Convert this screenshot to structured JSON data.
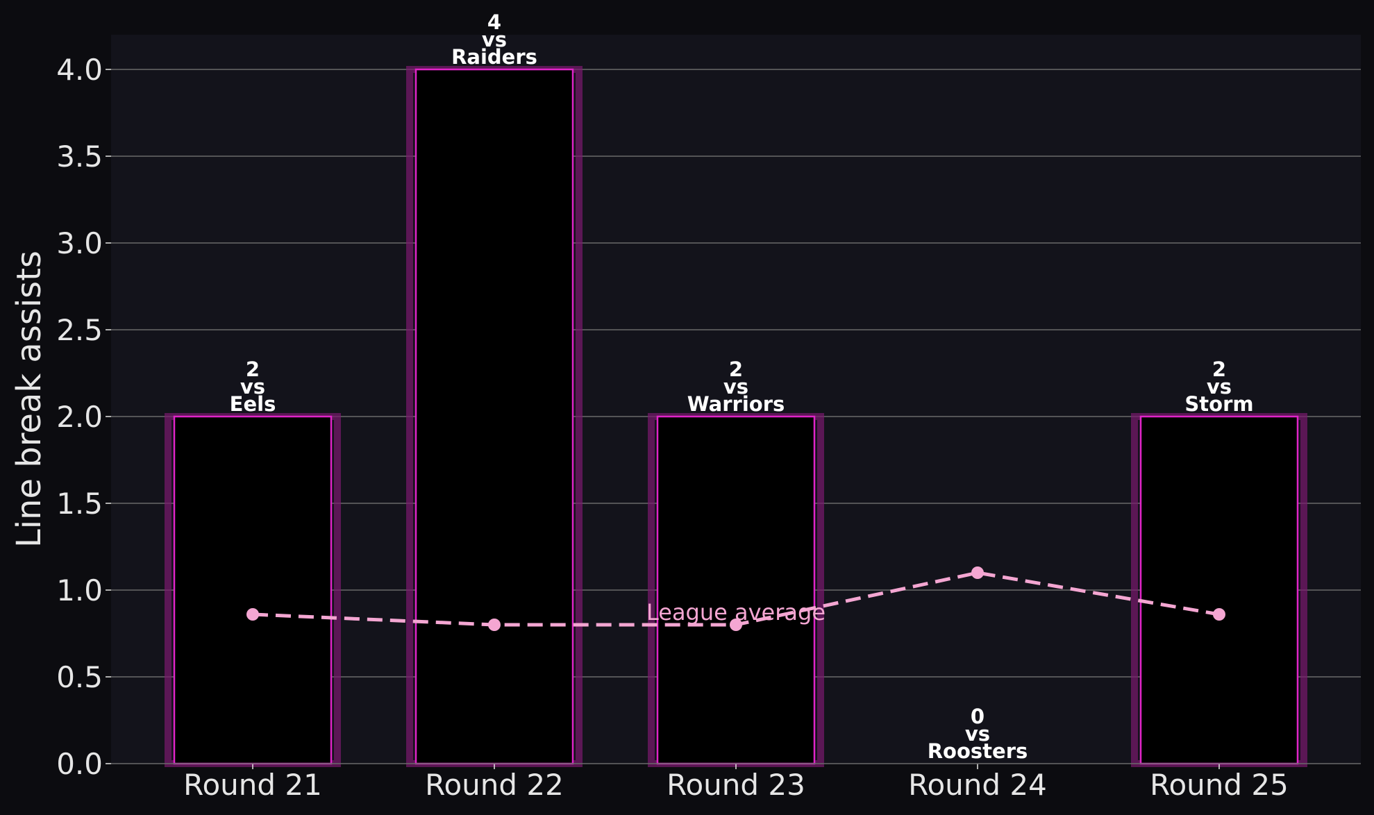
{
  "chart_data": {
    "type": "bar",
    "categories": [
      "Round 21",
      "Round 22",
      "Round 23",
      "Round 24",
      "Round 25"
    ],
    "values": [
      2,
      4,
      2,
      0,
      2
    ],
    "opponents": [
      "Eels",
      "Raiders",
      "Warriors",
      "Roosters",
      "Storm"
    ],
    "vs_word": "vs",
    "league_average": [
      0.86,
      0.8,
      0.8,
      1.1,
      0.86
    ],
    "league_average_label": "League average",
    "ylabel": "Line break assists",
    "xlabel": "",
    "ylim": [
      0,
      4.2
    ],
    "yticks": [
      0.0,
      0.5,
      1.0,
      1.5,
      2.0,
      2.5,
      3.0,
      3.5,
      4.0
    ],
    "grid": "horizontal",
    "colors": {
      "figure_background": "#0c0c10",
      "plot_background": "#13131b",
      "bar_fill": "#000000",
      "bar_edge": "#e024c8",
      "bar_glow": "#7a1a6e",
      "average_line": "#f4a6d2",
      "grid": "#6a6a6a"
    }
  }
}
